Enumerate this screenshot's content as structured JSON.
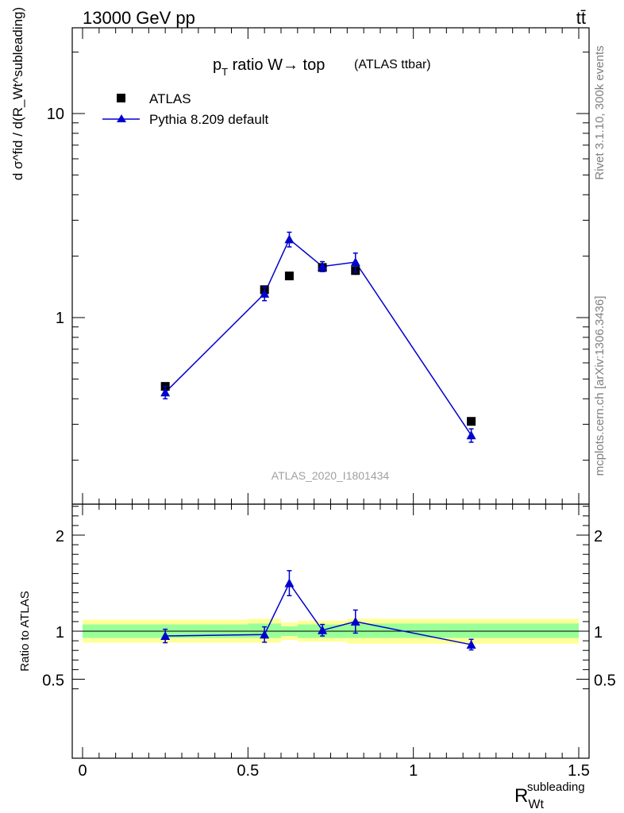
{
  "header": {
    "left": "13000 GeV pp",
    "right": "tt̄"
  },
  "side_labels": {
    "rivet": "Rivet 3.1.10,  300k events",
    "mcplots": "mcplots.cern.ch [arXiv:1306.3436]"
  },
  "upper": {
    "title_main": "p",
    "title_sub": "T",
    "title_rest": " ratio W→ top",
    "title_small": "(ATLAS ttbar)",
    "ylabel": "d σ^fid / d(R_Wt^subleading)",
    "analysis_id": "ATLAS_2020_I1801434"
  },
  "legend": {
    "data_label": "ATLAS",
    "mc_label": "Pythia 8.209 default"
  },
  "lower": {
    "ylabel": "Ratio to ATLAS"
  },
  "xaxis": {
    "label_main": "R",
    "label_sub": "Wt",
    "label_sup": "subleading"
  },
  "colors": {
    "mc": "#0000cc",
    "data": "#000000",
    "band_inner": "#99ff99",
    "band_outer": "#ffff99"
  },
  "chart_data": [
    {
      "type": "scatter",
      "scale": "log-y",
      "xlim": [
        -0.05,
        1.52
      ],
      "ylim": [
        0.2,
        25
      ],
      "yticks": [
        {
          "v": 1,
          "label": "1"
        },
        {
          "v": 10,
          "label": "10"
        }
      ],
      "xticks": [
        0,
        0.5,
        1,
        1.5
      ],
      "series": [
        {
          "name": "ATLAS",
          "x": [
            0.25,
            0.55,
            0.625,
            0.725,
            0.825,
            1.175
          ],
          "y": [
            0.46,
            1.37,
            1.6,
            1.76,
            1.7,
            0.31
          ],
          "err": [
            0.015,
            0.06,
            0.05,
            0.08,
            0.08,
            0.01
          ]
        },
        {
          "name": "Pythia 8.209 default",
          "x": [
            0.25,
            0.55,
            0.625,
            0.725,
            0.825,
            1.175
          ],
          "y": [
            0.43,
            1.31,
            2.42,
            1.78,
            1.87,
            0.265
          ],
          "err": [
            0.03,
            0.1,
            0.2,
            0.1,
            0.2,
            0.02
          ]
        }
      ]
    },
    {
      "type": "scatter",
      "ylim": [
        0.4,
        2.4
      ],
      "yticks": [
        {
          "v": 0.5,
          "label": "0.5"
        },
        {
          "v": 1,
          "label": "1"
        },
        {
          "v": 2,
          "label": "2"
        }
      ],
      "xticks": [
        {
          "v": 0,
          "label": "0"
        },
        {
          "v": 0.5,
          "label": "0.5"
        },
        {
          "v": 1,
          "label": "1"
        },
        {
          "v": 1.5,
          "label": "1.5"
        }
      ],
      "bands": [
        {
          "x0": 0.0,
          "x1": 0.5,
          "inner": [
            0.93,
            1.07
          ],
          "outer": [
            0.88,
            1.12
          ]
        },
        {
          "x0": 0.5,
          "x1": 0.6,
          "inner": [
            0.93,
            1.08
          ],
          "outer": [
            0.88,
            1.13
          ]
        },
        {
          "x0": 0.6,
          "x1": 0.65,
          "inner": [
            0.95,
            1.05
          ],
          "outer": [
            0.91,
            1.09
          ]
        },
        {
          "x0": 0.65,
          "x1": 0.8,
          "inner": [
            0.93,
            1.07
          ],
          "outer": [
            0.89,
            1.11
          ]
        },
        {
          "x0": 0.8,
          "x1": 1.5,
          "inner": [
            0.93,
            1.08
          ],
          "outer": [
            0.87,
            1.13
          ]
        }
      ],
      "series": [
        {
          "name": "Pythia 8.209 default",
          "x": [
            0.25,
            0.55,
            0.625,
            0.725,
            0.825,
            1.175
          ],
          "y": [
            0.95,
            0.965,
            1.5,
            1.01,
            1.1,
            0.86
          ],
          "err": [
            0.07,
            0.08,
            0.13,
            0.06,
            0.12,
            0.055
          ]
        }
      ]
    }
  ]
}
